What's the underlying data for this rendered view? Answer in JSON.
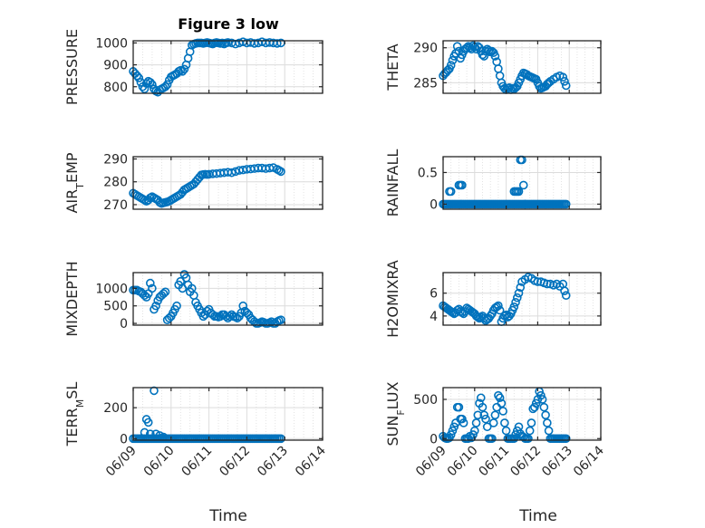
{
  "figure_title": "Figure 3 low",
  "colors": {
    "marker": "#0072BD",
    "axis": "#262626",
    "grid": "#dcdcdc"
  },
  "x_tick_labels": [
    "06/09",
    "06/10",
    "06/11",
    "06/12",
    "06/13",
    "06/14"
  ],
  "x_label": "Time",
  "chart_data": [
    {
      "type": "scatter",
      "ylabel": "PRESSURE",
      "ylim": [
        770,
        1010
      ],
      "yticks": [
        800,
        900,
        1000
      ],
      "yticklabels": [
        "800",
        "900",
        "1000"
      ],
      "x": [
        0.0,
        0.05,
        0.1,
        0.15,
        0.2,
        0.25,
        0.3,
        0.35,
        0.4,
        0.45,
        0.5,
        0.55,
        0.6,
        0.65,
        0.7,
        0.75,
        0.8,
        0.85,
        0.9,
        0.95,
        1.0,
        1.05,
        1.1,
        1.15,
        1.2,
        1.25,
        1.3,
        1.35,
        1.4,
        1.45,
        1.5,
        1.55,
        1.6,
        1.65,
        1.7,
        1.75,
        1.8,
        1.85,
        1.9,
        1.95,
        2.0,
        2.05,
        2.1,
        2.15,
        2.2,
        2.25,
        2.3,
        2.35,
        2.4,
        2.45,
        2.5,
        2.6,
        2.7,
        2.8,
        2.9,
        3.0,
        3.1,
        3.2,
        3.3,
        3.4,
        3.5,
        3.6,
        3.7,
        3.8,
        3.9
      ],
      "y": [
        870,
        860,
        850,
        840,
        820,
        800,
        790,
        815,
        825,
        820,
        810,
        790,
        780,
        775,
        785,
        790,
        795,
        800,
        810,
        830,
        845,
        850,
        855,
        860,
        870,
        875,
        870,
        880,
        900,
        930,
        960,
        990,
        995,
        998,
        1000,
        1000,
        1000,
        998,
        1000,
        1002,
        1000,
        998,
        995,
        1000,
        1002,
        1000,
        998,
        1000,
        995,
        1000,
        1002,
        1000,
        995,
        1000,
        1005,
        1000,
        1002,
        998,
        1000,
        1005,
        1000,
        1002,
        1000,
        998,
        1000
      ]
    },
    {
      "type": "scatter",
      "ylabel": "THETA",
      "ylim": [
        283.5,
        291
      ],
      "yticks": [
        285,
        290
      ],
      "yticklabels": [
        "285",
        "290"
      ],
      "x": [
        0.0,
        0.05,
        0.1,
        0.15,
        0.2,
        0.25,
        0.3,
        0.35,
        0.4,
        0.45,
        0.5,
        0.55,
        0.6,
        0.65,
        0.7,
        0.75,
        0.8,
        0.85,
        0.9,
        0.95,
        1.0,
        1.05,
        1.1,
        1.15,
        1.2,
        1.25,
        1.3,
        1.35,
        1.4,
        1.45,
        1.5,
        1.55,
        1.6,
        1.65,
        1.7,
        1.75,
        1.8,
        1.85,
        1.9,
        1.95,
        2.0,
        2.05,
        2.1,
        2.15,
        2.2,
        2.25,
        2.3,
        2.35,
        2.4,
        2.45,
        2.5,
        2.55,
        2.6,
        2.65,
        2.7,
        2.75,
        2.8,
        2.85,
        2.9,
        2.95,
        3.0,
        3.05,
        3.1,
        3.15,
        3.2,
        3.25,
        3.3,
        3.35,
        3.4,
        3.5,
        3.6,
        3.7,
        3.8,
        3.85,
        3.9
      ],
      "y": [
        286.0,
        286.3,
        286.5,
        286.8,
        287.0,
        287.5,
        288.2,
        288.8,
        289.2,
        290.2,
        289.5,
        288.5,
        289.0,
        289.5,
        289.8,
        290.0,
        290.2,
        290.0,
        289.8,
        290.3,
        290.1,
        289.8,
        290.2,
        290.0,
        289.5,
        289.0,
        288.8,
        289.5,
        289.8,
        289.6,
        289.4,
        289.5,
        289.3,
        288.8,
        288.0,
        287.0,
        286.0,
        285.0,
        284.5,
        284.2,
        284.0,
        284.2,
        284.3,
        284.0,
        284.2,
        284.1,
        284.3,
        284.5,
        285.0,
        285.5,
        286.0,
        286.4,
        286.3,
        286.2,
        286.0,
        285.9,
        285.8,
        285.7,
        285.6,
        285.5,
        285.0,
        284.5,
        284.2,
        284.3,
        284.4,
        284.5,
        284.8,
        285.0,
        285.2,
        285.5,
        285.8,
        286.0,
        285.8,
        285.2,
        284.6
      ]
    },
    {
      "type": "scatter",
      "ylabel": "AIR_TEMP",
      "ylim": [
        268,
        291
      ],
      "yticks": [
        270,
        280,
        290
      ],
      "yticklabels": [
        "270",
        "280",
        "290"
      ],
      "x": [
        0.0,
        0.05,
        0.1,
        0.15,
        0.2,
        0.25,
        0.3,
        0.35,
        0.4,
        0.45,
        0.5,
        0.55,
        0.6,
        0.65,
        0.7,
        0.75,
        0.8,
        0.85,
        0.9,
        0.95,
        1.0,
        1.05,
        1.1,
        1.15,
        1.2,
        1.25,
        1.3,
        1.35,
        1.4,
        1.45,
        1.5,
        1.55,
        1.6,
        1.65,
        1.7,
        1.75,
        1.8,
        1.85,
        1.9,
        1.95,
        2.0,
        2.1,
        2.2,
        2.3,
        2.4,
        2.5,
        2.6,
        2.7,
        2.8,
        2.9,
        3.0,
        3.1,
        3.2,
        3.3,
        3.4,
        3.5,
        3.6,
        3.7,
        3.8,
        3.85,
        3.9
      ],
      "y": [
        275.0,
        274.5,
        274.0,
        273.5,
        273.0,
        272.5,
        272.0,
        271.5,
        272.0,
        273.0,
        273.5,
        273.0,
        272.5,
        272.0,
        271.0,
        270.5,
        270.8,
        271.0,
        271.2,
        271.5,
        272.0,
        272.5,
        273.0,
        273.5,
        274.0,
        274.5,
        275.5,
        276.5,
        277.0,
        277.5,
        278.0,
        278.5,
        279.0,
        280.0,
        281.0,
        282.0,
        283.0,
        283.2,
        283.3,
        283.2,
        283.3,
        283.5,
        283.6,
        283.8,
        284.0,
        284.2,
        284.0,
        284.5,
        285.0,
        285.2,
        285.5,
        285.6,
        285.8,
        286.0,
        286.0,
        285.8,
        286.0,
        286.2,
        285.5,
        285.0,
        284.5
      ]
    },
    {
      "type": "scatter",
      "ylabel": "RAINFALL",
      "ylim": [
        -0.08,
        0.75
      ],
      "yticks": [
        0,
        0.5
      ],
      "yticklabels": [
        "0",
        "0.5"
      ],
      "x": [
        0.0,
        0.05,
        0.1,
        0.15,
        0.2,
        0.25,
        0.3,
        0.35,
        0.4,
        0.45,
        0.5,
        0.55,
        0.6,
        0.65,
        0.7,
        0.75,
        0.8,
        0.85,
        0.9,
        0.95,
        1.0,
        1.05,
        1.1,
        1.15,
        1.2,
        1.25,
        1.3,
        1.35,
        1.4,
        1.45,
        1.5,
        1.55,
        1.6,
        1.65,
        1.7,
        1.75,
        1.8,
        1.85,
        1.9,
        1.95,
        2.0,
        2.05,
        2.1,
        2.15,
        2.2,
        2.25,
        2.3,
        2.35,
        2.4,
        2.45,
        2.5,
        2.55,
        2.6,
        2.65,
        2.7,
        2.75,
        2.8,
        2.85,
        2.9,
        2.95,
        3.0,
        3.05,
        3.1,
        3.15,
        3.2,
        3.25,
        3.3,
        3.35,
        3.4,
        3.45,
        3.5,
        3.55,
        3.6,
        3.65,
        3.7,
        3.75,
        3.8,
        3.85,
        3.9,
        2.25,
        2.3,
        2.35,
        2.4,
        2.45,
        2.5,
        2.55,
        2.6,
        0.2,
        0.25,
        0.5,
        0.55,
        0.6
      ],
      "y": [
        0,
        0,
        0,
        0,
        0,
        0,
        0,
        0,
        0,
        0,
        0,
        0,
        0,
        0,
        0,
        0,
        0,
        0,
        0,
        0,
        0,
        0,
        0,
        0,
        0,
        0,
        0,
        0,
        0,
        0,
        0,
        0,
        0,
        0,
        0,
        0,
        0,
        0,
        0,
        0,
        0,
        0,
        0,
        0,
        0,
        0,
        0,
        0,
        0,
        0,
        0,
        0,
        0,
        0,
        0,
        0,
        0,
        0,
        0,
        0,
        0,
        0,
        0,
        0,
        0,
        0,
        0,
        0,
        0,
        0,
        0,
        0,
        0,
        0,
        0,
        0,
        0,
        0,
        0,
        0.2,
        0.2,
        0.2,
        0.2,
        0.7,
        0.7,
        0.3,
        0,
        0.2,
        0.2,
        0.3,
        0.3,
        0.3
      ]
    },
    {
      "type": "scatter",
      "ylabel": "MIXDEPTH",
      "ylim": [
        -50,
        1450
      ],
      "yticks": [
        0,
        500,
        1000
      ],
      "yticklabels": [
        "0",
        "500",
        "1000"
      ],
      "x": [
        0.0,
        0.05,
        0.1,
        0.15,
        0.2,
        0.25,
        0.3,
        0.35,
        0.4,
        0.45,
        0.5,
        0.55,
        0.6,
        0.65,
        0.7,
        0.75,
        0.8,
        0.85,
        0.9,
        0.95,
        1.0,
        1.05,
        1.1,
        1.15,
        1.2,
        1.25,
        1.3,
        1.35,
        1.4,
        1.45,
        1.5,
        1.55,
        1.6,
        1.65,
        1.7,
        1.75,
        1.8,
        1.85,
        1.9,
        1.95,
        2.0,
        2.05,
        2.1,
        2.15,
        2.2,
        2.25,
        2.3,
        2.35,
        2.4,
        2.45,
        2.5,
        2.55,
        2.6,
        2.65,
        2.7,
        2.75,
        2.8,
        2.85,
        2.9,
        2.95,
        3.0,
        3.05,
        3.1,
        3.15,
        3.2,
        3.25,
        3.3,
        3.35,
        3.4,
        3.45,
        3.5,
        3.55,
        3.6,
        3.65,
        3.7,
        3.75,
        3.8,
        3.85,
        3.9
      ],
      "y": [
        950,
        950,
        950,
        920,
        900,
        850,
        800,
        750,
        850,
        1150,
        1000,
        400,
        500,
        650,
        750,
        800,
        850,
        900,
        100,
        150,
        200,
        300,
        400,
        500,
        1100,
        1200,
        1000,
        1400,
        1300,
        1100,
        900,
        1000,
        800,
        600,
        500,
        400,
        300,
        200,
        250,
        350,
        400,
        300,
        250,
        200,
        200,
        180,
        200,
        250,
        250,
        200,
        150,
        200,
        250,
        200,
        180,
        150,
        200,
        300,
        500,
        350,
        300,
        250,
        150,
        100,
        50,
        0,
        0,
        20,
        50,
        30,
        0,
        0,
        20,
        50,
        0,
        0,
        50,
        80,
        100
      ]
    },
    {
      "type": "scatter",
      "ylabel": "H2OMIXRA",
      "ylim": [
        3.2,
        7.8
      ],
      "yticks": [
        4,
        6
      ],
      "yticklabels": [
        "4",
        "6"
      ],
      "x": [
        0.0,
        0.05,
        0.1,
        0.15,
        0.2,
        0.25,
        0.3,
        0.35,
        0.4,
        0.45,
        0.5,
        0.55,
        0.6,
        0.65,
        0.7,
        0.75,
        0.8,
        0.85,
        0.9,
        0.95,
        1.0,
        1.05,
        1.1,
        1.15,
        1.2,
        1.25,
        1.3,
        1.35,
        1.4,
        1.45,
        1.5,
        1.55,
        1.6,
        1.65,
        1.7,
        1.75,
        1.8,
        1.85,
        1.9,
        1.95,
        2.0,
        2.05,
        2.1,
        2.15,
        2.2,
        2.25,
        2.3,
        2.35,
        2.4,
        2.45,
        2.5,
        2.6,
        2.7,
        2.8,
        2.9,
        3.0,
        3.1,
        3.2,
        3.3,
        3.4,
        3.5,
        3.6,
        3.7,
        3.8,
        3.85,
        3.9
      ],
      "y": [
        4.9,
        4.8,
        4.7,
        4.6,
        4.5,
        4.4,
        4.3,
        4.2,
        4.3,
        4.5,
        4.6,
        4.4,
        4.3,
        4.2,
        4.4,
        4.7,
        4.6,
        4.5,
        4.4,
        4.3,
        4.2,
        4.0,
        3.9,
        3.8,
        3.9,
        4.0,
        3.8,
        3.6,
        3.7,
        3.8,
        4.0,
        4.2,
        4.5,
        4.7,
        4.8,
        4.9,
        4.5,
        3.5,
        3.8,
        4.0,
        4.1,
        3.9,
        4.0,
        4.2,
        4.5,
        4.8,
        5.2,
        5.6,
        6.0,
        6.5,
        7.0,
        7.2,
        7.4,
        7.3,
        7.1,
        7.0,
        7.0,
        6.9,
        6.8,
        6.8,
        6.7,
        6.8,
        6.6,
        6.8,
        6.2,
        5.8
      ]
    },
    {
      "type": "scatter",
      "ylabel": "TERR_MSL",
      "ylim": [
        -10,
        330
      ],
      "yticks": [
        0,
        200
      ],
      "yticklabels": [
        "0",
        "200"
      ],
      "x": [
        0.0,
        0.05,
        0.1,
        0.15,
        0.2,
        0.25,
        0.3,
        0.35,
        0.4,
        0.45,
        0.5,
        0.55,
        0.6,
        0.65,
        0.7,
        0.75,
        0.8,
        0.85,
        0.9,
        0.95,
        1.0,
        1.05,
        1.1,
        1.15,
        1.2,
        1.25,
        1.3,
        1.35,
        1.4,
        1.45,
        1.5,
        1.55,
        1.6,
        1.65,
        1.7,
        1.75,
        1.8,
        1.85,
        1.9,
        1.95,
        2.0,
        2.05,
        2.1,
        2.15,
        2.2,
        2.25,
        2.3,
        2.35,
        2.4,
        2.45,
        2.5,
        2.55,
        2.6,
        2.65,
        2.7,
        2.75,
        2.8,
        2.85,
        2.9,
        2.95,
        3.0,
        3.05,
        3.1,
        3.15,
        3.2,
        3.25,
        3.3,
        3.35,
        3.4,
        3.45,
        3.5,
        3.55,
        3.6,
        3.65,
        3.7,
        3.75,
        3.8,
        3.85,
        3.9,
        0.3,
        0.35,
        0.4,
        0.45,
        0.55,
        0.6,
        0.7,
        0.8
      ],
      "y": [
        0,
        0,
        0,
        0,
        0,
        0,
        0,
        0,
        0,
        0,
        0,
        0,
        0,
        0,
        0,
        0,
        0,
        0,
        0,
        0,
        0,
        0,
        0,
        0,
        0,
        0,
        0,
        0,
        0,
        0,
        0,
        0,
        0,
        0,
        0,
        0,
        0,
        0,
        0,
        0,
        0,
        0,
        0,
        0,
        0,
        0,
        0,
        0,
        0,
        0,
        0,
        0,
        0,
        0,
        0,
        0,
        0,
        0,
        0,
        0,
        0,
        0,
        0,
        0,
        0,
        0,
        0,
        0,
        0,
        0,
        0,
        0,
        0,
        0,
        0,
        0,
        0,
        0,
        0,
        40,
        125,
        105,
        30,
        310,
        30,
        20,
        10
      ]
    },
    {
      "type": "scatter",
      "ylabel": "SUN_FLUX",
      "ylim": [
        -20,
        650
      ],
      "yticks": [
        0,
        500
      ],
      "yticklabels": [
        "0",
        "500"
      ],
      "x": [
        0.0,
        0.05,
        0.1,
        0.15,
        0.2,
        0.25,
        0.3,
        0.35,
        0.4,
        0.45,
        0.5,
        0.55,
        0.6,
        0.65,
        0.7,
        0.75,
        0.8,
        0.85,
        0.9,
        0.95,
        1.0,
        1.05,
        1.1,
        1.15,
        1.2,
        1.25,
        1.3,
        1.35,
        1.4,
        1.45,
        1.5,
        1.55,
        1.6,
        1.65,
        1.7,
        1.75,
        1.8,
        1.85,
        1.9,
        1.95,
        2.0,
        2.05,
        2.1,
        2.15,
        2.2,
        2.25,
        2.3,
        2.35,
        2.4,
        2.45,
        2.5,
        2.55,
        2.6,
        2.65,
        2.7,
        2.75,
        2.8,
        2.85,
        2.9,
        2.95,
        3.0,
        3.05,
        3.1,
        3.15,
        3.2,
        3.25,
        3.3,
        3.35,
        3.4,
        3.45,
        3.5,
        3.55,
        3.6,
        3.65,
        3.7,
        3.75,
        3.8,
        3.85,
        3.9
      ],
      "y": [
        30,
        10,
        0,
        0,
        10,
        50,
        100,
        150,
        200,
        400,
        400,
        250,
        250,
        200,
        0,
        0,
        0,
        30,
        10,
        50,
        100,
        200,
        300,
        450,
        520,
        400,
        300,
        250,
        150,
        0,
        0,
        0,
        200,
        300,
        400,
        550,
        520,
        450,
        350,
        200,
        100,
        0,
        0,
        0,
        0,
        0,
        50,
        100,
        150,
        60,
        30,
        20,
        0,
        0,
        0,
        100,
        200,
        380,
        400,
        450,
        500,
        600,
        550,
        500,
        400,
        300,
        200,
        100,
        0,
        0,
        0,
        0,
        0,
        0,
        0,
        0,
        0,
        0,
        0
      ]
    }
  ]
}
